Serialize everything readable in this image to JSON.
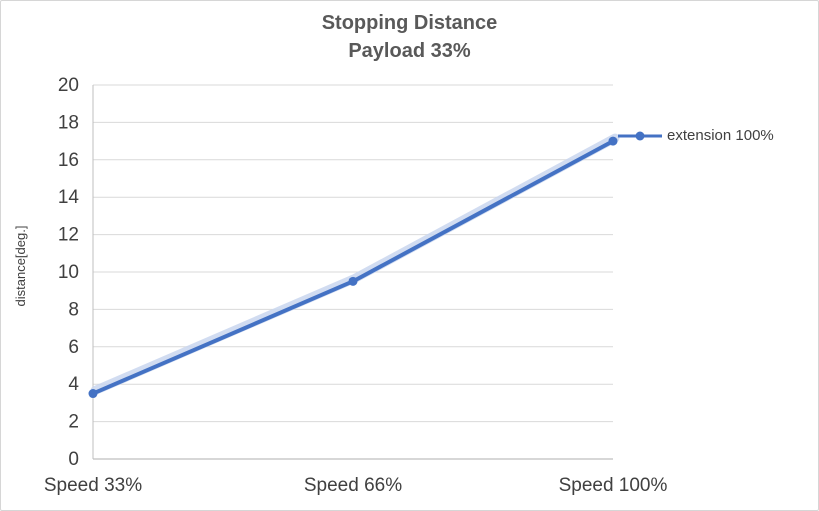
{
  "chart": {
    "title": "Stopping Distance",
    "subtitle": "Payload 33%"
  },
  "chart_data": {
    "type": "line",
    "title": "Stopping Distance",
    "subtitle": "Payload 33%",
    "xlabel": "",
    "ylabel": "distance[deg.]",
    "categories": [
      "Speed 33%",
      "Speed 66%",
      "Speed 100%"
    ],
    "series": [
      {
        "name": "extension 100%",
        "values": [
          3.5,
          9.5,
          17
        ]
      }
    ],
    "ylim": [
      0,
      20
    ],
    "ytick_step": 2,
    "grid": true,
    "legend_position": "right",
    "colors": {
      "line": "#4472C4",
      "marker": "#4472C4",
      "shadow": "#C9D6EE",
      "grid": "#D9D9D9",
      "axis": "#BFBFBF",
      "text": "#404040",
      "title": "#595959"
    }
  },
  "legend": {
    "label": "extension 100%"
  }
}
